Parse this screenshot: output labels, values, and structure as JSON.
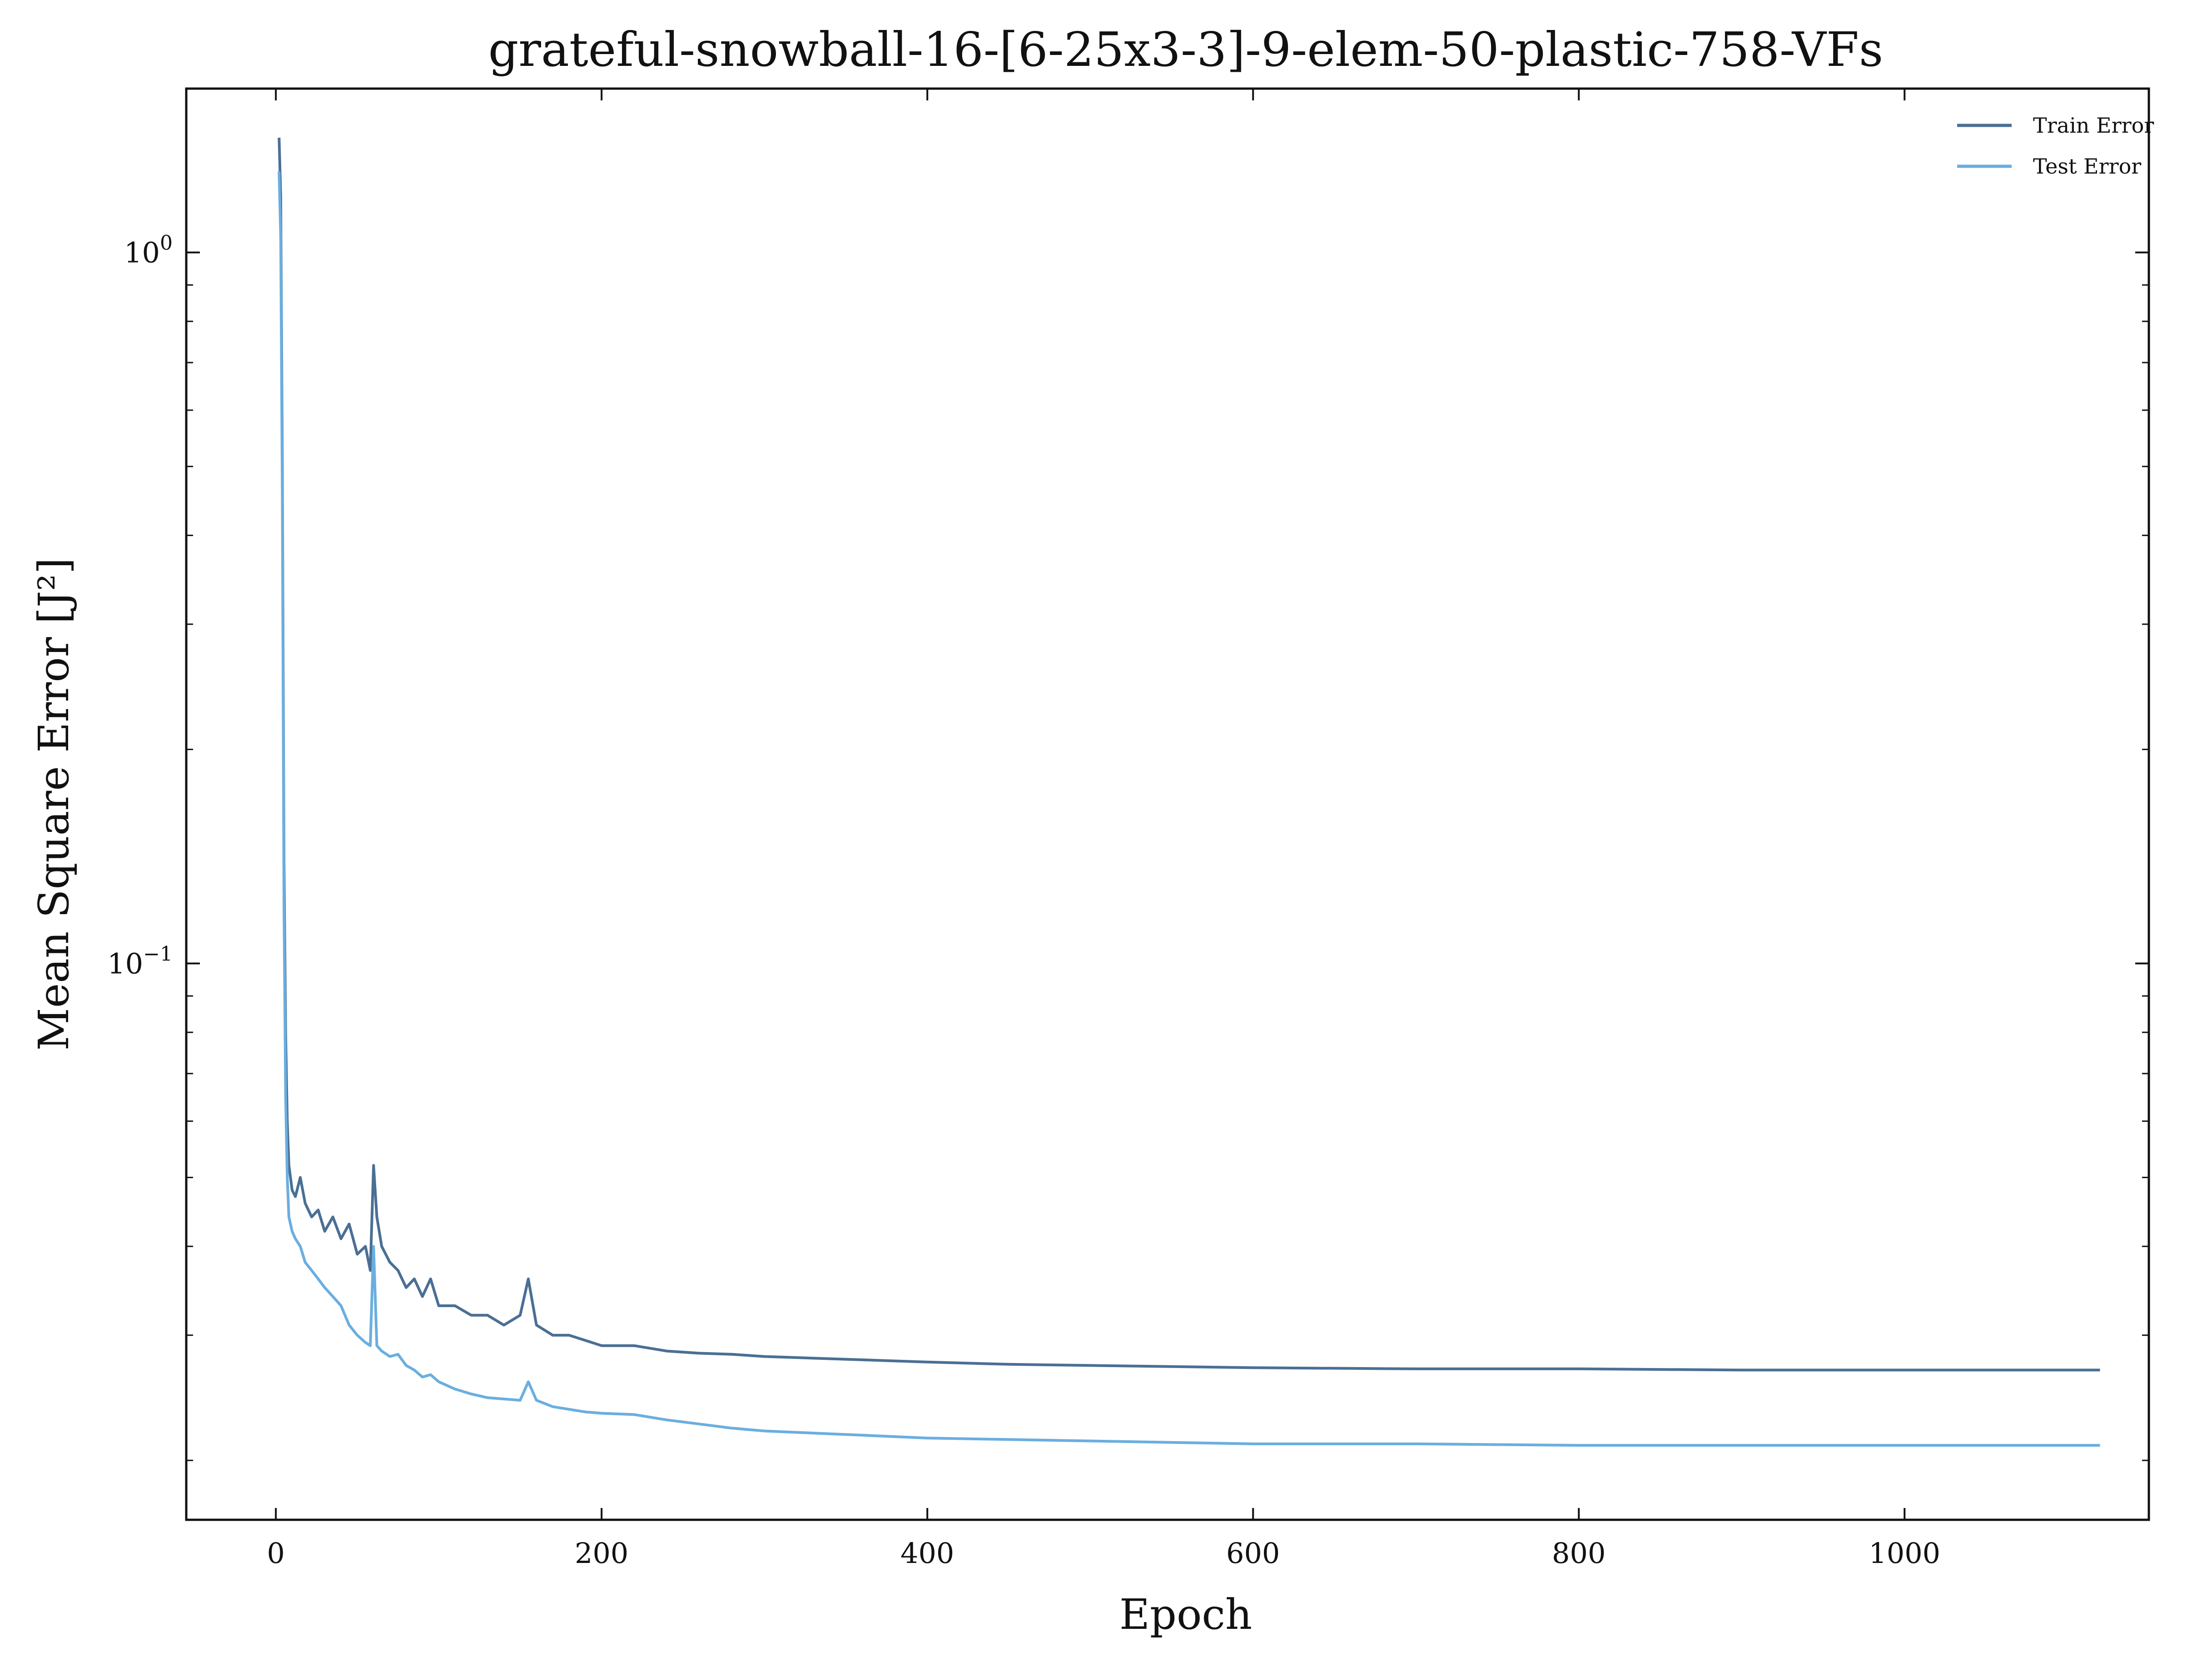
{
  "chart_data": {
    "type": "line",
    "title": "grateful-snowball-16-[6-25x3-3]-9-elem-50-plastic-758-VFs",
    "xlabel": "Epoch",
    "ylabel": "Mean Square Error [J²]",
    "yscale": "log",
    "xlim": [
      -55,
      1150
    ],
    "ylim": [
      0.0165,
      1.7
    ],
    "x_ticks": [
      0,
      200,
      400,
      600,
      800,
      1000
    ],
    "x_tick_labels": [
      "0",
      "200",
      "400",
      "600",
      "800",
      "1000"
    ],
    "y_ticks": [
      1.0,
      0.1
    ],
    "y_tick_labels": [
      {
        "base": "10",
        "exp": "0"
      },
      {
        "base": "10",
        "exp": "−1"
      }
    ],
    "grid": false,
    "legend_position": "top-right",
    "series": [
      {
        "name": "Train Error",
        "color": "#4a6f94",
        "points": [
          [
            2,
            1.45
          ],
          [
            3,
            1.2
          ],
          [
            4,
            0.5
          ],
          [
            5,
            0.14
          ],
          [
            6,
            0.08
          ],
          [
            7,
            0.06
          ],
          [
            8,
            0.052
          ],
          [
            10,
            0.048
          ],
          [
            12,
            0.047
          ],
          [
            15,
            0.05
          ],
          [
            18,
            0.046
          ],
          [
            22,
            0.044
          ],
          [
            26,
            0.045
          ],
          [
            30,
            0.042
          ],
          [
            35,
            0.044
          ],
          [
            40,
            0.041
          ],
          [
            45,
            0.043
          ],
          [
            50,
            0.039
          ],
          [
            55,
            0.04
          ],
          [
            58,
            0.037
          ],
          [
            60,
            0.052
          ],
          [
            62,
            0.044
          ],
          [
            65,
            0.04
          ],
          [
            70,
            0.038
          ],
          [
            75,
            0.037
          ],
          [
            80,
            0.035
          ],
          [
            85,
            0.036
          ],
          [
            90,
            0.034
          ],
          [
            95,
            0.036
          ],
          [
            100,
            0.033
          ],
          [
            110,
            0.033
          ],
          [
            120,
            0.032
          ],
          [
            130,
            0.032
          ],
          [
            140,
            0.031
          ],
          [
            150,
            0.032
          ],
          [
            155,
            0.036
          ],
          [
            160,
            0.031
          ],
          [
            170,
            0.03
          ],
          [
            180,
            0.03
          ],
          [
            190,
            0.0295
          ],
          [
            200,
            0.029
          ],
          [
            220,
            0.029
          ],
          [
            240,
            0.0285
          ],
          [
            260,
            0.0283
          ],
          [
            280,
            0.0282
          ],
          [
            300,
            0.028
          ],
          [
            320,
            0.0279
          ],
          [
            340,
            0.0278
          ],
          [
            360,
            0.0277
          ],
          [
            380,
            0.0276
          ],
          [
            400,
            0.0275
          ],
          [
            450,
            0.0273
          ],
          [
            500,
            0.0272
          ],
          [
            550,
            0.0271
          ],
          [
            600,
            0.027
          ],
          [
            700,
            0.0269
          ],
          [
            800,
            0.0269
          ],
          [
            900,
            0.0268
          ],
          [
            1000,
            0.0268
          ],
          [
            1120,
            0.0268
          ]
        ]
      },
      {
        "name": "Test Error",
        "color": "#6aaee0",
        "points": [
          [
            2,
            1.3
          ],
          [
            3,
            1.05
          ],
          [
            4,
            0.45
          ],
          [
            5,
            0.12
          ],
          [
            6,
            0.065
          ],
          [
            7,
            0.05
          ],
          [
            8,
            0.044
          ],
          [
            10,
            0.042
          ],
          [
            12,
            0.041
          ],
          [
            15,
            0.04
          ],
          [
            18,
            0.038
          ],
          [
            22,
            0.037
          ],
          [
            26,
            0.036
          ],
          [
            30,
            0.035
          ],
          [
            35,
            0.034
          ],
          [
            40,
            0.033
          ],
          [
            45,
            0.031
          ],
          [
            50,
            0.03
          ],
          [
            55,
            0.0293
          ],
          [
            58,
            0.029
          ],
          [
            60,
            0.04
          ],
          [
            62,
            0.029
          ],
          [
            65,
            0.0285
          ],
          [
            70,
            0.028
          ],
          [
            75,
            0.0282
          ],
          [
            80,
            0.0272
          ],
          [
            85,
            0.0268
          ],
          [
            90,
            0.0262
          ],
          [
            95,
            0.0264
          ],
          [
            100,
            0.0258
          ],
          [
            110,
            0.0252
          ],
          [
            120,
            0.0248
          ],
          [
            130,
            0.0245
          ],
          [
            140,
            0.0244
          ],
          [
            150,
            0.0243
          ],
          [
            155,
            0.0258
          ],
          [
            160,
            0.0243
          ],
          [
            170,
            0.0238
          ],
          [
            180,
            0.0236
          ],
          [
            190,
            0.0234
          ],
          [
            200,
            0.0233
          ],
          [
            220,
            0.0232
          ],
          [
            240,
            0.0228
          ],
          [
            260,
            0.0225
          ],
          [
            280,
            0.0222
          ],
          [
            300,
            0.022
          ],
          [
            320,
            0.0219
          ],
          [
            340,
            0.0218
          ],
          [
            360,
            0.0217
          ],
          [
            380,
            0.0216
          ],
          [
            400,
            0.0215
          ],
          [
            450,
            0.0214
          ],
          [
            500,
            0.0213
          ],
          [
            550,
            0.0212
          ],
          [
            600,
            0.0211
          ],
          [
            700,
            0.0211
          ],
          [
            800,
            0.021
          ],
          [
            900,
            0.021
          ],
          [
            1000,
            0.021
          ],
          [
            1120,
            0.021
          ]
        ]
      }
    ]
  }
}
